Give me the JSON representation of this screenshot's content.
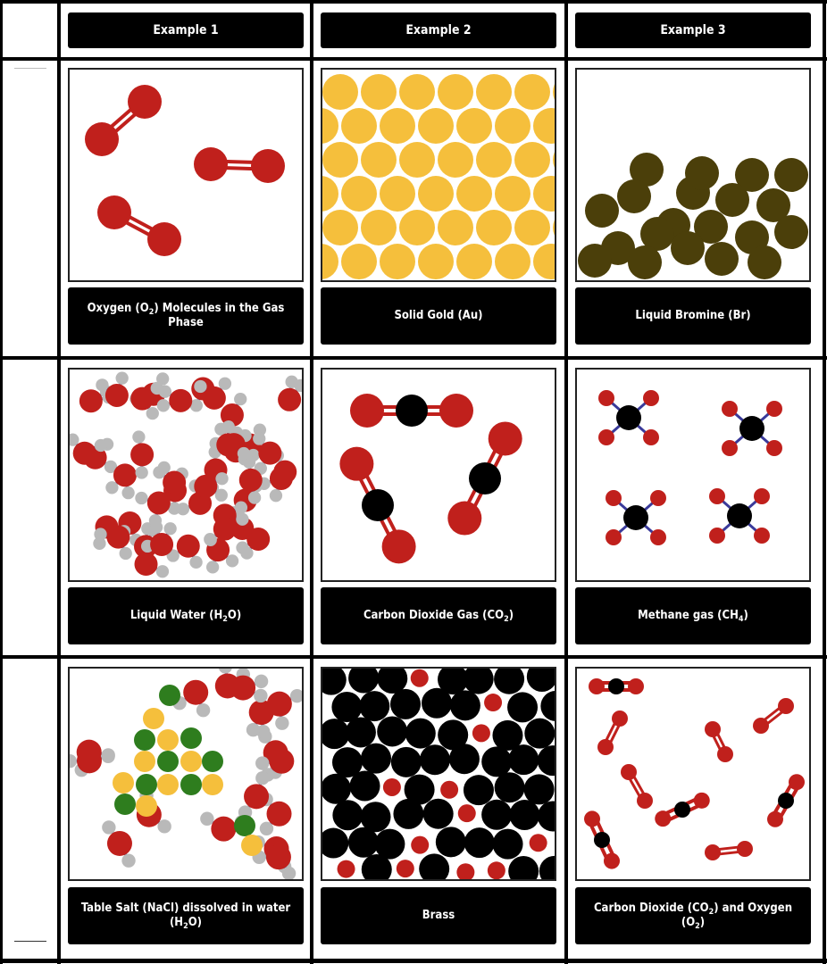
{
  "headers": [
    "Example 1",
    "Example 2",
    "Example 3"
  ],
  "colors": {
    "oxygen": "#c0201c",
    "hydrogen": "#b9b9b9",
    "carbon": "#000000",
    "gold": "#f5bf3c",
    "bromine": "#4b3f0a",
    "sodium": "#f5bf3c",
    "chlorine": "#2e7d1e",
    "bond": "#3a3a9a"
  },
  "rows": [
    {
      "cells": [
        {
          "caption_parts": [
            [
              "Oxygen (O",
              ""
            ],
            [
              "2",
              "sub"
            ],
            [
              ") Molecules in the Gas Phase",
              ""
            ]
          ],
          "scene": "o2-gas",
          "icon": "oxygen-molecules-icon"
        },
        {
          "caption_parts": [
            [
              "Solid Gold (Au)",
              ""
            ]
          ],
          "scene": "gold-solid",
          "icon": "gold-lattice-icon"
        },
        {
          "caption_parts": [
            [
              "Liquid Bromine (Br)",
              ""
            ]
          ],
          "scene": "bromine-liquid",
          "icon": "bromine-atoms-icon"
        }
      ]
    },
    {
      "cells": [
        {
          "caption_parts": [
            [
              "Liquid Water (H",
              ""
            ],
            [
              "2",
              "sub"
            ],
            [
              "O)",
              ""
            ]
          ],
          "scene": "water-liquid",
          "icon": "water-molecules-icon"
        },
        {
          "caption_parts": [
            [
              "Carbon Dioxide Gas (CO",
              ""
            ],
            [
              "2",
              "sub"
            ],
            [
              ")",
              ""
            ]
          ],
          "scene": "co2-gas",
          "icon": "co2-molecules-icon"
        },
        {
          "caption_parts": [
            [
              "Methane gas (CH",
              ""
            ],
            [
              "4",
              "sub"
            ],
            [
              ")",
              ""
            ]
          ],
          "scene": "ch4-gas",
          "icon": "methane-molecules-icon"
        }
      ]
    },
    {
      "cells": [
        {
          "caption_parts": [
            [
              "Table Salt (NaCl) dissolved in water (H",
              ""
            ],
            [
              "2",
              "sub"
            ],
            [
              "O)",
              ""
            ]
          ],
          "scene": "salt-water",
          "icon": "salt-solution-icon"
        },
        {
          "caption_parts": [
            [
              "Brass",
              ""
            ]
          ],
          "scene": "brass",
          "icon": "brass-alloy-icon"
        },
        {
          "caption_parts": [
            [
              "Carbon Dioxide (CO",
              ""
            ],
            [
              "2",
              "sub"
            ],
            [
              ") and Oxygen (O",
              ""
            ],
            [
              "2",
              "sub"
            ],
            [
              ")",
              ""
            ]
          ],
          "scene": "co2-o2-gas",
          "icon": "co2-o2-mixture-icon"
        }
      ]
    }
  ]
}
